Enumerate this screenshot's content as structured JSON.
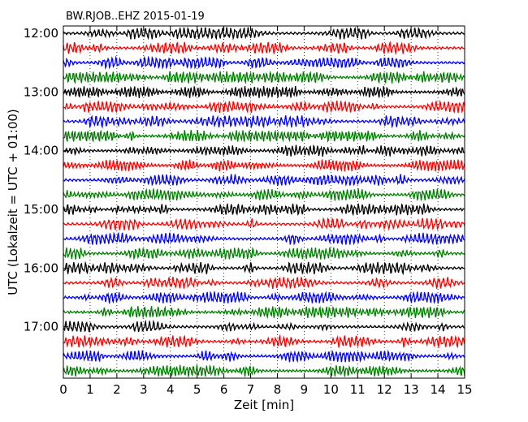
{
  "chart_data": {
    "type": "line",
    "title": "BW.RJOB..EHZ 2015-01-19",
    "xlabel": "Zeit  [min]",
    "ylabel": "UTC (Lokalzeit = UTC + 01:00)",
    "xlim": [
      0,
      15
    ],
    "x_ticks": [
      "0",
      "1",
      "2",
      "3",
      "4",
      "5",
      "6",
      "7",
      "8",
      "9",
      "10",
      "11",
      "12",
      "13",
      "14",
      "15"
    ],
    "y_tick_labels": [
      "12:00",
      "13:00",
      "14:00",
      "15:00",
      "16:00",
      "17:00"
    ],
    "trace_interval_min": 15,
    "trace_colors": [
      "#000000",
      "#ff0000",
      "#0000ff",
      "#008000"
    ],
    "trace_count": 24,
    "grid": "vertical dotted lines at each minute",
    "legend": "none"
  }
}
